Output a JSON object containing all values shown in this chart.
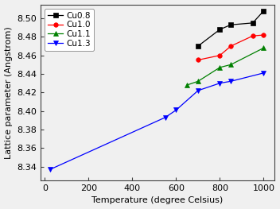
{
  "series": [
    {
      "label": "Cu0.8",
      "color": "#000000",
      "marker": "s",
      "linestyle": "-",
      "x": [
        700,
        800,
        850,
        950,
        1000
      ],
      "y": [
        8.47,
        8.488,
        8.493,
        8.495,
        8.508
      ]
    },
    {
      "label": "Cu1.0",
      "color": "#ff0000",
      "marker": "o",
      "linestyle": "-",
      "x": [
        700,
        800,
        850,
        950,
        1000
      ],
      "y": [
        8.455,
        8.46,
        8.47,
        8.481,
        8.482
      ]
    },
    {
      "label": "Cu1.1",
      "color": "#008000",
      "marker": "^",
      "linestyle": "-",
      "x": [
        650,
        700,
        800,
        850,
        1000
      ],
      "y": [
        8.428,
        8.432,
        8.447,
        8.45,
        8.468
      ]
    },
    {
      "label": "Cu1.3",
      "color": "#0000ff",
      "marker": "v",
      "linestyle": "-",
      "x": [
        25,
        550,
        600,
        700,
        800,
        850,
        1000
      ],
      "y": [
        8.337,
        8.393,
        8.401,
        8.422,
        8.43,
        8.432,
        8.441
      ]
    }
  ],
  "xlabel": "Temperature (degree Celsius)",
  "ylabel": "Lattice parameter (Angstrom)",
  "xlim": [
    -20,
    1050
  ],
  "ylim": [
    8.325,
    8.515
  ],
  "xticks": [
    0,
    200,
    400,
    600,
    800,
    1000
  ],
  "yticks": [
    8.34,
    8.36,
    8.38,
    8.4,
    8.42,
    8.44,
    8.46,
    8.48,
    8.5
  ],
  "legend_loc": "upper left",
  "marker_size": 4,
  "line_width": 0.9,
  "label_fontsize": 8,
  "tick_fontsize": 8,
  "legend_fontsize": 7.5,
  "bg_color": "#f0f0f0",
  "fig_bg_color": "#f0f0f0"
}
